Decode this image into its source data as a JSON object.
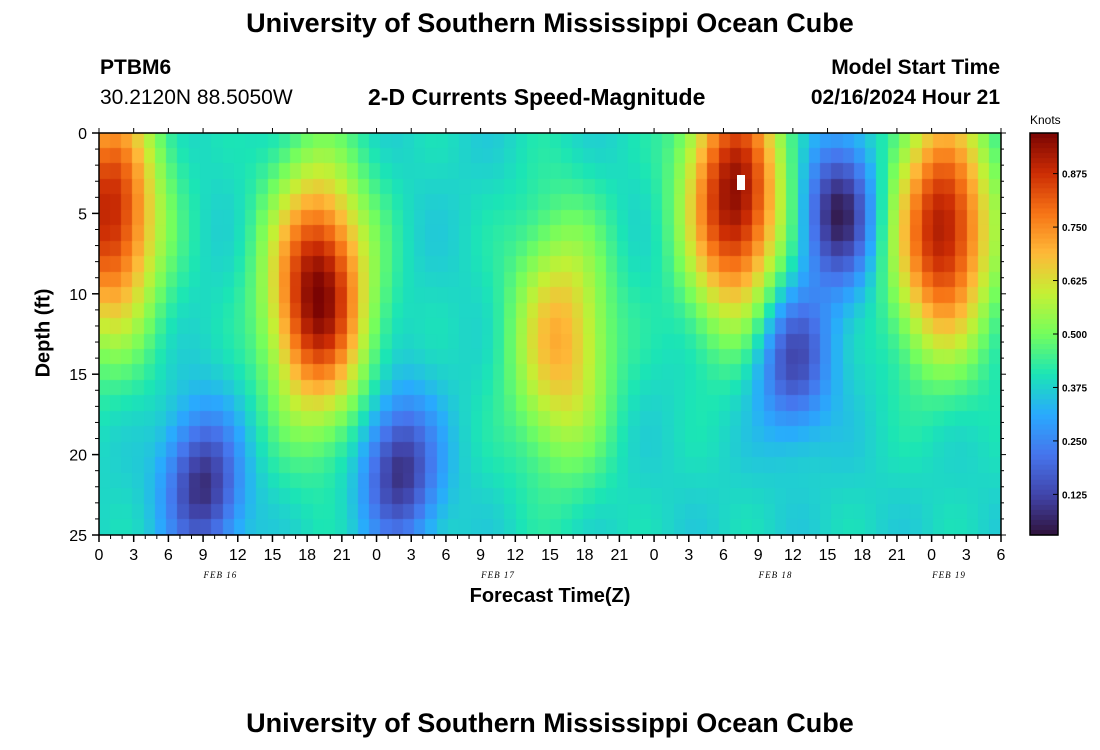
{
  "header": {
    "title": "University of Southern Mississippi Ocean Cube",
    "station_id": "PTBM6",
    "station_coords": "30.2120N  88.5050W",
    "chart_title": "2-D Currents Speed-Magnitude",
    "model_start_label": "Model Start Time",
    "model_start_value": "02/16/2024 Hour 21"
  },
  "footer": {
    "title": "University of Southern Mississippi Ocean Cube"
  },
  "chart_data": {
    "type": "heatmap",
    "title": "2-D Currents Speed-Magnitude",
    "xlabel": "Forecast Time(Z)",
    "ylabel": "Depth (ft)",
    "x_range_hours": [
      0,
      78
    ],
    "y_range_ft": [
      0,
      25
    ],
    "y_inverted": true,
    "x_tick_labels": [
      "0",
      "3",
      "6",
      "9",
      "12",
      "15",
      "18",
      "21",
      "0",
      "3",
      "6",
      "9",
      "12",
      "15",
      "18",
      "21",
      "0",
      "3",
      "6",
      "9",
      "12",
      "15",
      "18",
      "21",
      "0",
      "3",
      "6"
    ],
    "y_tick_labels": [
      "0",
      "5",
      "10",
      "15",
      "20",
      "25"
    ],
    "date_labels": [
      {
        "label": "FEB 16",
        "hour": 10.5
      },
      {
        "label": "FEB 17",
        "hour": 34.5
      },
      {
        "label": "FEB 18",
        "hour": 58.5
      },
      {
        "label": "FEB 19",
        "hour": 73.5
      }
    ],
    "colorbar": {
      "unit": "Knots",
      "range": [
        0.03,
        0.97
      ],
      "ticks": [
        "0.125",
        "0.250",
        "0.375",
        "0.500",
        "0.625",
        "0.750",
        "0.875"
      ]
    },
    "speed_features": [
      {
        "kind": "high",
        "hour": 1,
        "depth": 5,
        "value": 0.9
      },
      {
        "kind": "high",
        "hour": 19,
        "depth": 10,
        "value": 0.97
      },
      {
        "kind": "high",
        "hour": 40,
        "depth": 13,
        "value": 0.7
      },
      {
        "kind": "high",
        "hour": 55,
        "depth": 4,
        "value": 0.95
      },
      {
        "kind": "high",
        "hour": 73,
        "depth": 6,
        "value": 0.92
      },
      {
        "kind": "low",
        "hour": 9,
        "depth": 22,
        "value": 0.08
      },
      {
        "kind": "low",
        "hour": 26,
        "depth": 21,
        "value": 0.08
      },
      {
        "kind": "low",
        "hour": 64,
        "depth": 5,
        "value": 0.05
      },
      {
        "kind": "low",
        "hour": 60,
        "depth": 14,
        "value": 0.12
      }
    ]
  }
}
